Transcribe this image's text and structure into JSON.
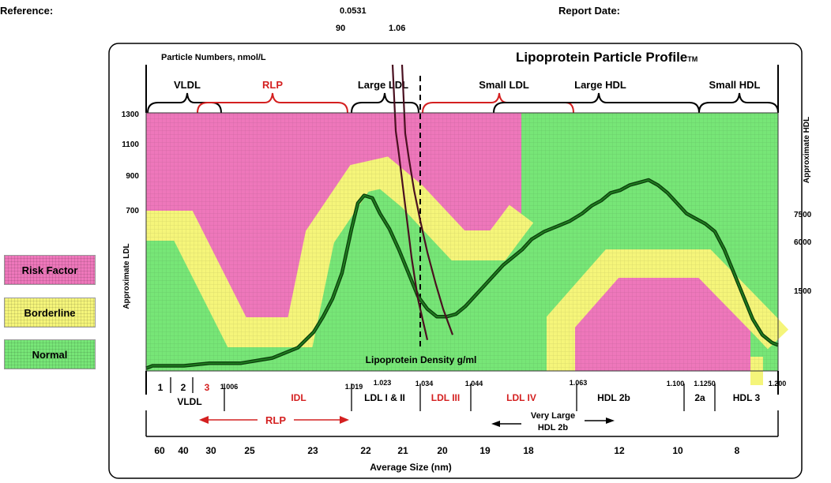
{
  "header": {
    "reference_label": "Reference:",
    "report_date_label": "Report  Date:",
    "value_top": "0.0531",
    "value_left": "90",
    "value_right": "1.06"
  },
  "legend": [
    {
      "label": "Risk Factor",
      "color": "#ee77bb"
    },
    {
      "label": "Borderline",
      "color": "#f5f57a"
    },
    {
      "label": "Normal",
      "color": "#77e677"
    }
  ],
  "chart_data": {
    "type": "line",
    "title": "Lipoprotein Particle Profile",
    "trademark": "TM",
    "subtitle": "Particle Numbers, nmol/L",
    "x_title_top": "Lipoprotein Density g/ml",
    "x_title_bottom": "Average Size (nm)",
    "y_left_title": "Approximate   LDL",
    "y_right_title": "Approximate   HDL",
    "y_left_ticks": [
      "1300",
      "1100",
      "900",
      "700"
    ],
    "y_right_ticks": [
      "7500",
      "6000",
      "1500"
    ],
    "fractions": [
      {
        "label": "VLDL",
        "color": "#000000"
      },
      {
        "label": "RLP",
        "color": "#d42020"
      },
      {
        "label": "Large  LDL",
        "color": "#000000"
      },
      {
        "label": "Small  LDL",
        "color": "#000000"
      },
      {
        "label": "Large HDL",
        "color": "#000000"
      },
      {
        "label": "Small HDL",
        "color": "#000000"
      }
    ],
    "density_ticks": [
      "1.006",
      "1.019",
      "1.023",
      "1.034",
      "1.044",
      "1.063",
      "1.100",
      "1.1250",
      "1.200"
    ],
    "classes": [
      {
        "label": "1",
        "color": "#000000"
      },
      {
        "label": "2",
        "color": "#000000"
      },
      {
        "label": "3",
        "color": "#d42020"
      },
      {
        "label": "VLDL",
        "color": "#000000"
      },
      {
        "label": "IDL",
        "color": "#d42020"
      },
      {
        "label": "LDL   I & II",
        "color": "#000000"
      },
      {
        "label": "LDL III",
        "color": "#d42020"
      },
      {
        "label": "LDL IV",
        "color": "#d42020"
      },
      {
        "label": "HDL 2b",
        "color": "#000000"
      },
      {
        "label": "2a",
        "color": "#000000"
      },
      {
        "label": "HDL 3",
        "color": "#000000"
      },
      {
        "label": "RLP",
        "color": "#d42020"
      },
      {
        "label": "Very Large",
        "color": "#000000"
      },
      {
        "label": "HDL 2b",
        "color": "#000000"
      }
    ],
    "size_ticks": [
      "60",
      "40",
      "30",
      "25",
      "23",
      "22",
      "21",
      "20",
      "19",
      "18",
      "12",
      "10",
      "8"
    ],
    "profile_curve": {
      "x": [
        0,
        0.01,
        0.03,
        0.06,
        0.1,
        0.15,
        0.2,
        0.24,
        0.265,
        0.28,
        0.295,
        0.31,
        0.325,
        0.335,
        0.345,
        0.358,
        0.37,
        0.385,
        0.4,
        0.415,
        0.43,
        0.445,
        0.46,
        0.475,
        0.49,
        0.505,
        0.52,
        0.535,
        0.55,
        0.565,
        0.58,
        0.595,
        0.61,
        0.63,
        0.65,
        0.67,
        0.69,
        0.705,
        0.72,
        0.735,
        0.75,
        0.765,
        0.78,
        0.795,
        0.81,
        0.825,
        0.84,
        0.855,
        0.87,
        0.885,
        0.9,
        0.915,
        0.93,
        0.945,
        0.96,
        0.975,
        0.99,
        1.0
      ],
      "y": [
        0.01,
        0.02,
        0.02,
        0.02,
        0.03,
        0.03,
        0.05,
        0.09,
        0.15,
        0.21,
        0.28,
        0.38,
        0.55,
        0.65,
        0.68,
        0.67,
        0.61,
        0.55,
        0.47,
        0.38,
        0.29,
        0.24,
        0.21,
        0.21,
        0.22,
        0.25,
        0.29,
        0.33,
        0.37,
        0.41,
        0.44,
        0.47,
        0.51,
        0.54,
        0.56,
        0.58,
        0.61,
        0.64,
        0.66,
        0.69,
        0.7,
        0.72,
        0.73,
        0.74,
        0.72,
        0.69,
        0.65,
        0.61,
        0.59,
        0.57,
        0.54,
        0.47,
        0.38,
        0.29,
        0.2,
        0.14,
        0.11,
        0.1
      ]
    },
    "ldl_curve_left": {
      "x": [
        0.39,
        0.395,
        0.4,
        0.406,
        0.413,
        0.42,
        0.43,
        0.445
      ],
      "y": [
        1.0,
        0.93,
        0.84,
        0.72,
        0.58,
        0.44,
        0.28,
        0.12
      ]
    },
    "ldl_curve_right": {
      "x": [
        0.405,
        0.41,
        0.416,
        0.424,
        0.434,
        0.445,
        0.458,
        0.47,
        0.485
      ],
      "y": [
        1.0,
        0.92,
        0.82,
        0.7,
        0.58,
        0.46,
        0.34,
        0.24,
        0.14
      ]
    }
  }
}
